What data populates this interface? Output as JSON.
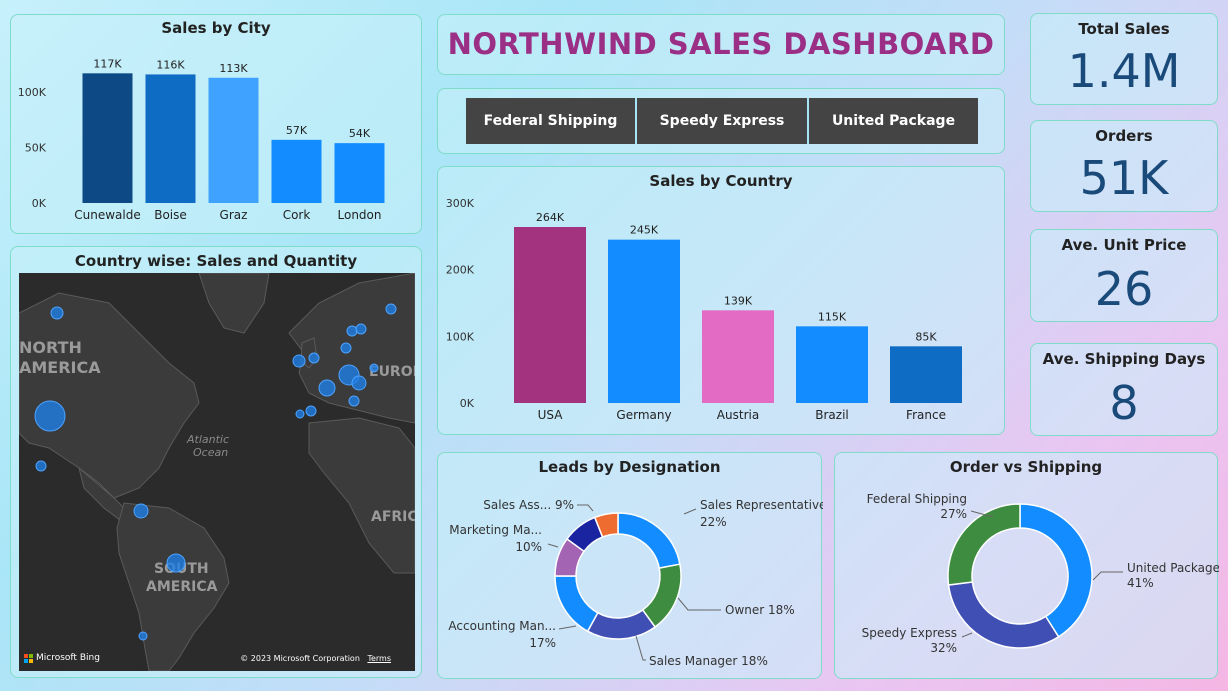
{
  "dashboard_title": "NORTHWIND SALES DASHBOARD",
  "slicer": {
    "options": [
      "Federal Shipping",
      "Speedy Express",
      "United Package"
    ]
  },
  "kpis": [
    {
      "label": "Total Sales",
      "value": "1.4M"
    },
    {
      "label": "Orders",
      "value": "51K"
    },
    {
      "label": "Ave. Unit Price",
      "value": "26"
    },
    {
      "label": "Ave. Shipping Days",
      "value": "8"
    }
  ],
  "map": {
    "title": "Country wise: Sales and Quantity",
    "labels": {
      "north_america": [
        "NORTH",
        "AMERICA"
      ],
      "south_america": [
        "SOUTH",
        "AMERICA"
      ],
      "ocean": [
        "Atlantic",
        "Ocean"
      ],
      "europe": "EUROPE",
      "africa": "AFRICA"
    },
    "logo_text": "Microsoft Bing",
    "copyright": "© 2023 Microsoft Corporation",
    "terms": "Terms"
  },
  "chart_data": [
    {
      "id": "sales-by-city",
      "type": "bar",
      "title": "Sales by City",
      "categories": [
        "Cunewalde",
        "Boise",
        "Graz",
        "Cork",
        "London"
      ],
      "values": [
        117000,
        116000,
        113000,
        57000,
        54000
      ],
      "data_labels": [
        "117K",
        "116K",
        "113K",
        "57K",
        "54K"
      ],
      "colors": [
        "#0d4a85",
        "#0f6cc4",
        "#3fa2ff",
        "#128cff",
        "#128cff"
      ],
      "ylim": [
        0,
        120000
      ],
      "yticks": [
        0,
        50000,
        100000
      ],
      "ytick_labels": [
        "0K",
        "50K",
        "100K"
      ],
      "grid": false
    },
    {
      "id": "sales-by-country",
      "type": "bar",
      "title": "Sales by Country",
      "categories": [
        "USA",
        "Germany",
        "Austria",
        "Brazil",
        "France"
      ],
      "values": [
        264000,
        245000,
        139000,
        115000,
        85000
      ],
      "data_labels": [
        "264K",
        "245K",
        "139K",
        "115K",
        "85K"
      ],
      "colors": [
        "#a3337f",
        "#128cff",
        "#e36bc4",
        "#128cff",
        "#0f6cc4"
      ],
      "ylim": [
        0,
        300000
      ],
      "yticks": [
        0,
        100000,
        200000,
        300000
      ],
      "ytick_labels": [
        "0K",
        "100K",
        "200K",
        "300K"
      ],
      "grid": false
    },
    {
      "id": "leads-by-designation",
      "type": "pie",
      "title": "Leads by Designation",
      "donut": true,
      "slices": [
        {
          "label": "Sales Representative",
          "value": 22,
          "pct": "22%",
          "color": "#128cff"
        },
        {
          "label": "Owner",
          "value": 18,
          "pct": "18%",
          "color": "#3d8c40"
        },
        {
          "label": "Sales Manager",
          "value": 18,
          "pct": "18%",
          "color": "#3f4fb3"
        },
        {
          "label": "Accounting Man...",
          "value": 17,
          "pct": "17%",
          "color": "#128cff"
        },
        {
          "label": "Marketing Ma...",
          "value": 10,
          "pct": "10%",
          "color": "#a264b3"
        },
        {
          "label": "Sales Ass...",
          "value": 9,
          "pct": "9%",
          "color": "#1a24a0"
        },
        {
          "label": "",
          "value": 6,
          "pct": "",
          "color": "#ef6c30"
        }
      ]
    },
    {
      "id": "order-vs-shipping",
      "type": "pie",
      "title": "Order vs Shipping",
      "donut": true,
      "slices": [
        {
          "label": "United Package",
          "value": 41,
          "pct": "41%",
          "color": "#128cff"
        },
        {
          "label": "Speedy Express",
          "value": 32,
          "pct": "32%",
          "color": "#3f4fb3"
        },
        {
          "label": "Federal Shipping",
          "value": 27,
          "pct": "27%",
          "color": "#3d8c40"
        }
      ]
    }
  ]
}
